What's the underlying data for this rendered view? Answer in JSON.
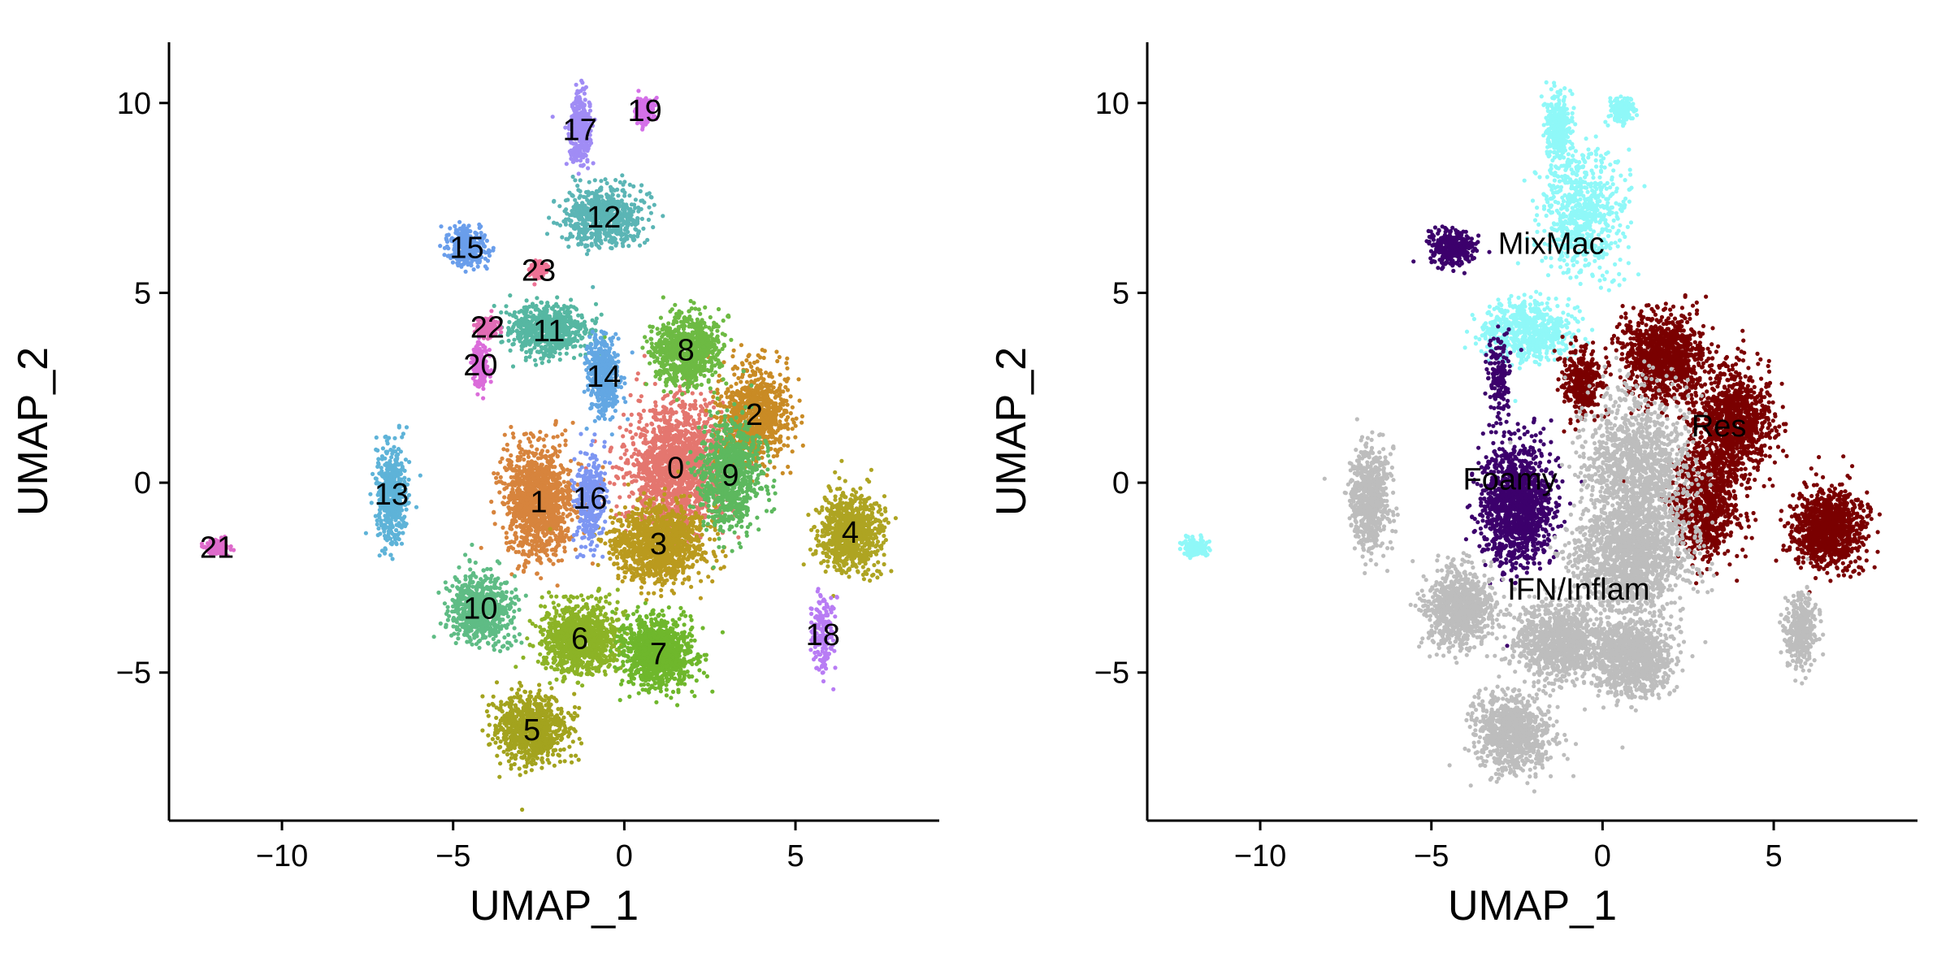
{
  "chart_data": [
    {
      "type": "scatter",
      "title": "",
      "xlabel": "UMAP_1",
      "ylabel": "UMAP_2",
      "xlim": [
        -13.3,
        9.2
      ],
      "ylim": [
        -8.9,
        11.6
      ],
      "xticks": [
        -10,
        -5,
        0,
        5
      ],
      "yticks": [
        -5,
        0,
        5,
        10
      ],
      "xtick_labels": [
        "−10",
        "−5",
        "0",
        "5"
      ],
      "ytick_labels": [
        "−5",
        "0",
        "5",
        "10"
      ],
      "grid": false,
      "legend": "none",
      "series": [
        {
          "label": "0",
          "color": "#E4766F",
          "center": [
            1.5,
            0.4
          ],
          "spread": [
            1.3,
            1.6
          ],
          "weight": 9
        },
        {
          "label": "1",
          "color": "#D7843D",
          "center": [
            -2.5,
            -0.5
          ],
          "spread": [
            0.9,
            1.3
          ],
          "weight": 7
        },
        {
          "label": "2",
          "color": "#C98B25",
          "center": [
            3.8,
            1.8
          ],
          "spread": [
            0.9,
            1.1
          ],
          "weight": 5
        },
        {
          "label": "3",
          "color": "#BA9A1E",
          "center": [
            1.0,
            -1.6
          ],
          "spread": [
            1.2,
            0.9
          ],
          "weight": 7
        },
        {
          "label": "4",
          "color": "#AEA422",
          "center": [
            6.6,
            -1.3
          ],
          "spread": [
            0.8,
            0.9
          ],
          "weight": 5
        },
        {
          "label": "5",
          "color": "#A3A31E",
          "center": [
            -2.7,
            -6.5
          ],
          "spread": [
            0.9,
            0.8
          ],
          "weight": 5
        },
        {
          "label": "6",
          "color": "#8CB326",
          "center": [
            -1.3,
            -4.1
          ],
          "spread": [
            1.0,
            0.8
          ],
          "weight": 6
        },
        {
          "label": "7",
          "color": "#6FB72C",
          "center": [
            1.0,
            -4.5
          ],
          "spread": [
            0.9,
            0.8
          ],
          "weight": 6
        },
        {
          "label": "8",
          "color": "#6DBA43",
          "center": [
            1.8,
            3.5
          ],
          "spread": [
            0.9,
            0.8
          ],
          "weight": 5
        },
        {
          "label": "9",
          "color": "#5DB85E",
          "center": [
            3.1,
            0.2
          ],
          "spread": [
            0.8,
            1.3
          ],
          "weight": 5
        },
        {
          "label": "10",
          "color": "#5FBC85",
          "center": [
            -4.2,
            -3.3
          ],
          "spread": [
            0.8,
            0.8
          ],
          "weight": 4
        },
        {
          "label": "11",
          "color": "#56B7A2",
          "center": [
            -2.2,
            4.0
          ],
          "spread": [
            1.0,
            0.6
          ],
          "weight": 4
        },
        {
          "label": "12",
          "color": "#5BB5B5",
          "center": [
            -0.6,
            7.0
          ],
          "spread": [
            1.0,
            0.7
          ],
          "weight": 4
        },
        {
          "label": "13",
          "color": "#5EB3D8",
          "center": [
            -6.8,
            -0.3
          ],
          "spread": [
            0.4,
            1.1
          ],
          "weight": 3
        },
        {
          "label": "14",
          "color": "#63A7E3",
          "center": [
            -0.6,
            2.8
          ],
          "spread": [
            0.4,
            0.9
          ],
          "weight": 3
        },
        {
          "label": "15",
          "color": "#6A9EEB",
          "center": [
            -4.6,
            6.2
          ],
          "spread": [
            0.5,
            0.4
          ],
          "weight": 2
        },
        {
          "label": "16",
          "color": "#7D96F2",
          "center": [
            -1.0,
            -0.4
          ],
          "spread": [
            0.4,
            1.1
          ],
          "weight": 2
        },
        {
          "label": "17",
          "color": "#A08CF5",
          "center": [
            -1.3,
            9.3
          ],
          "spread": [
            0.3,
            0.8
          ],
          "weight": 2
        },
        {
          "label": "18",
          "color": "#B87CF4",
          "center": [
            5.8,
            -4.0
          ],
          "spread": [
            0.3,
            0.9
          ],
          "weight": 1
        },
        {
          "label": "19",
          "color": "#D470E8",
          "center": [
            0.6,
            9.8
          ],
          "spread": [
            0.25,
            0.3
          ],
          "weight": 1
        },
        {
          "label": "20",
          "color": "#DB6CDA",
          "center": [
            -4.2,
            3.1
          ],
          "spread": [
            0.2,
            0.6
          ],
          "weight": 1
        },
        {
          "label": "21",
          "color": "#DE6ACB",
          "center": [
            -11.9,
            -1.7
          ],
          "spread": [
            0.3,
            0.2
          ],
          "weight": 1
        },
        {
          "label": "22",
          "color": "#E26CB5",
          "center": [
            -4.0,
            4.1
          ],
          "spread": [
            0.25,
            0.2
          ],
          "weight": 1
        },
        {
          "label": "23",
          "color": "#EE7295",
          "center": [
            -2.5,
            5.6
          ],
          "spread": [
            0.2,
            0.2
          ],
          "weight": 1
        }
      ]
    },
    {
      "type": "scatter",
      "title": "",
      "xlabel": "UMAP_1",
      "ylabel": "UMAP_2",
      "xlim": [
        -13.3,
        9.2
      ],
      "ylim": [
        -8.9,
        11.6
      ],
      "xticks": [
        -10,
        -5,
        0,
        5
      ],
      "yticks": [
        -5,
        0,
        5,
        10
      ],
      "xtick_labels": [
        "−10",
        "−5",
        "0",
        "5"
      ],
      "ytick_labels": [
        "−5",
        "0",
        "5",
        "10"
      ],
      "grid": false,
      "legend": "none",
      "series": [
        {
          "label": "MixMac",
          "color": "#8FF8F8",
          "label_pos": [
            -1.5,
            6.3
          ],
          "blobs": [
            [
              -0.6,
              7.2,
              1.1,
              1.5,
              4
            ],
            [
              -1.3,
              9.3,
              0.3,
              0.8,
              2
            ],
            [
              0.6,
              9.8,
              0.3,
              0.3,
              1
            ],
            [
              -2.2,
              4.0,
              1.1,
              0.7,
              4
            ],
            [
              -11.9,
              -1.7,
              0.3,
              0.2,
              1
            ]
          ]
        },
        {
          "label": "Res",
          "color": "#7A0000",
          "label_pos": [
            3.4,
            1.5
          ],
          "blobs": [
            [
              1.8,
              3.3,
              1.1,
              1.0,
              6
            ],
            [
              3.8,
              1.6,
              1.0,
              1.2,
              6
            ],
            [
              3.0,
              -0.5,
              0.9,
              1.3,
              5
            ],
            [
              6.6,
              -1.2,
              0.9,
              0.9,
              6
            ],
            [
              -0.6,
              2.6,
              0.5,
              0.8,
              2
            ]
          ]
        },
        {
          "label": "Foamy",
          "color": "#3C006C",
          "label_pos": [
            -2.7,
            0.1
          ],
          "blobs": [
            [
              -2.5,
              -0.6,
              0.9,
              1.4,
              8
            ],
            [
              -4.4,
              6.2,
              0.6,
              0.4,
              2
            ],
            [
              -3.0,
              2.8,
              0.3,
              1.0,
              1
            ]
          ]
        },
        {
          "label": "IFN/Inflam",
          "color": "#BDBDBD",
          "label_pos": [
            -0.7,
            -2.8
          ],
          "blobs": [
            [
              1.0,
              0.3,
              1.4,
              1.8,
              8
            ],
            [
              0.8,
              -2.0,
              1.5,
              1.2,
              8
            ],
            [
              -1.2,
              -4.2,
              1.2,
              0.9,
              6
            ],
            [
              0.9,
              -4.6,
              1.0,
              0.9,
              6
            ],
            [
              -2.6,
              -6.6,
              1.0,
              0.9,
              5
            ],
            [
              -4.2,
              -3.3,
              0.9,
              0.9,
              5
            ],
            [
              -6.8,
              -0.4,
              0.5,
              1.2,
              4
            ],
            [
              5.8,
              -3.9,
              0.4,
              0.9,
              2
            ]
          ]
        }
      ]
    }
  ]
}
